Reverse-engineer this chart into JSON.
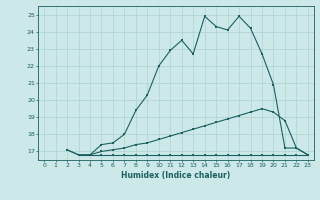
{
  "xlabel": "Humidex (Indice chaleur)",
  "ylabel": "",
  "xlim": [
    -0.5,
    23.5
  ],
  "ylim": [
    16.5,
    25.5
  ],
  "bg_color": "#cce8e8",
  "line_color": "#1a6060",
  "grid_color": "#a8cccc",
  "xticks": [
    0,
    1,
    2,
    3,
    4,
    5,
    6,
    7,
    8,
    9,
    10,
    11,
    12,
    13,
    14,
    15,
    16,
    17,
    18,
    19,
    20,
    21,
    22,
    23
  ],
  "yticks": [
    17,
    18,
    19,
    20,
    21,
    22,
    23,
    24,
    25
  ],
  "line1_x": [
    2,
    3,
    4,
    5,
    6,
    7,
    8,
    9,
    10,
    11,
    12,
    13,
    14,
    15,
    16,
    17,
    18,
    19,
    20,
    21,
    22,
    23
  ],
  "line1_y": [
    17.1,
    16.8,
    16.8,
    17.4,
    17.5,
    18.0,
    19.4,
    20.3,
    22.0,
    22.9,
    23.5,
    22.7,
    24.9,
    24.3,
    24.1,
    24.9,
    24.2,
    22.7,
    20.9,
    17.2,
    17.2,
    16.8
  ],
  "line2_x": [
    2,
    3,
    4,
    5,
    6,
    7,
    8,
    9,
    10,
    11,
    12,
    13,
    14,
    15,
    16,
    17,
    18,
    19,
    20,
    21,
    22,
    23
  ],
  "line2_y": [
    17.1,
    16.8,
    16.8,
    17.0,
    17.1,
    17.2,
    17.4,
    17.5,
    17.7,
    17.9,
    18.1,
    18.3,
    18.5,
    18.7,
    18.9,
    19.1,
    19.3,
    19.5,
    19.3,
    18.8,
    17.2,
    16.8
  ],
  "line3_x": [
    3,
    4,
    5,
    6,
    7,
    8,
    9,
    10,
    11,
    12,
    13,
    14,
    15,
    16,
    17,
    18,
    19,
    20,
    21,
    22,
    23
  ],
  "line3_y": [
    16.8,
    16.8,
    16.8,
    16.8,
    16.8,
    16.8,
    16.8,
    16.8,
    16.8,
    16.8,
    16.8,
    16.8,
    16.8,
    16.8,
    16.8,
    16.8,
    16.8,
    16.8,
    16.8,
    16.8,
    16.8
  ],
  "marker_size": 1.8,
  "line_width": 0.8,
  "tick_fontsize": 4.5,
  "xlabel_fontsize": 5.5
}
